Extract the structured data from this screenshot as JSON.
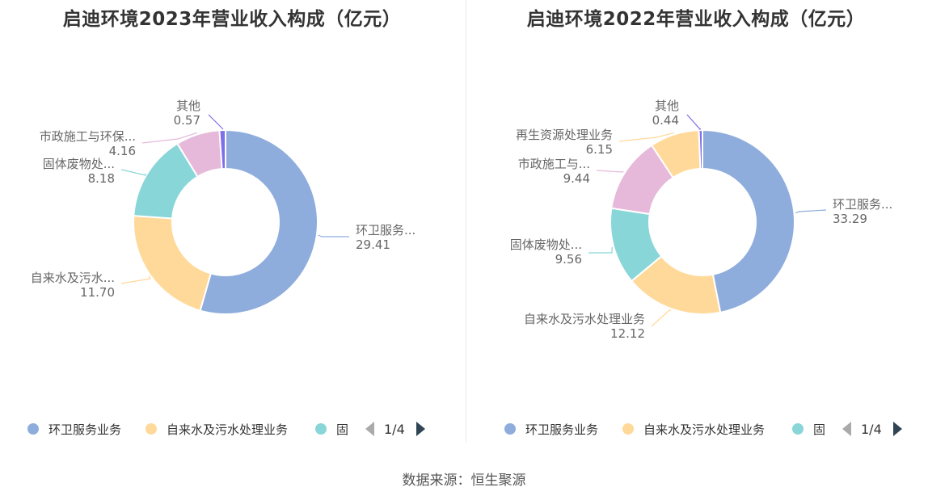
{
  "colors": {
    "series": [
      "#8eaddc",
      "#ffd99a",
      "#89d6d8",
      "#e6b9db",
      "#ffd99a",
      "#7e6ee8"
    ],
    "other_2022": "#7e6ee8"
  },
  "legend": {
    "items": [
      "环卫服务业务",
      "自来水及污水处理业务",
      "固"
    ],
    "page": "1/4"
  },
  "source": "数据来源：恒生聚源",
  "chart_data": [
    {
      "type": "pie",
      "title": "启迪环境2023年营业收入构成（亿元）",
      "slices": [
        {
          "name": "环卫服务业务",
          "label": "环卫服务...",
          "value": 29.41,
          "value_text": "29.41",
          "color": "#8eaddc"
        },
        {
          "name": "自来水及污水处理业务",
          "label": "自来水及污水...",
          "value": 11.7,
          "value_text": "11.70",
          "color": "#ffd99a"
        },
        {
          "name": "固体废物处理业务",
          "label": "固体废物处...",
          "value": 8.18,
          "value_text": "8.18",
          "color": "#89d6d8"
        },
        {
          "name": "市政施工与环保工程",
          "label": "市政施工与环保...",
          "value": 4.16,
          "value_text": "4.16",
          "color": "#e6b9db"
        },
        {
          "name": "其他",
          "label": "其他",
          "value": 0.57,
          "value_text": "0.57",
          "color": "#7e6ee8"
        }
      ]
    },
    {
      "type": "pie",
      "title": "启迪环境2022年营业收入构成（亿元）",
      "slices": [
        {
          "name": "环卫服务业务",
          "label": "环卫服务...",
          "value": 33.29,
          "value_text": "33.29",
          "color": "#8eaddc"
        },
        {
          "name": "自来水及污水处理业务",
          "label": "自来水及污水处理业务",
          "value": 12.12,
          "value_text": "12.12",
          "color": "#ffd99a"
        },
        {
          "name": "固体废物处理业务",
          "label": "固体废物处...",
          "value": 9.56,
          "value_text": "9.56",
          "color": "#89d6d8"
        },
        {
          "name": "市政施工与环保工程",
          "label": "市政施工与...",
          "value": 9.44,
          "value_text": "9.44",
          "color": "#e6b9db"
        },
        {
          "name": "再生资源处理业务",
          "label": "再生资源处理业务",
          "value": 6.15,
          "value_text": "6.15",
          "color": "#ffd99a"
        },
        {
          "name": "其他",
          "label": "其他",
          "value": 0.44,
          "value_text": "0.44",
          "color": "#7e6ee8"
        }
      ]
    }
  ]
}
